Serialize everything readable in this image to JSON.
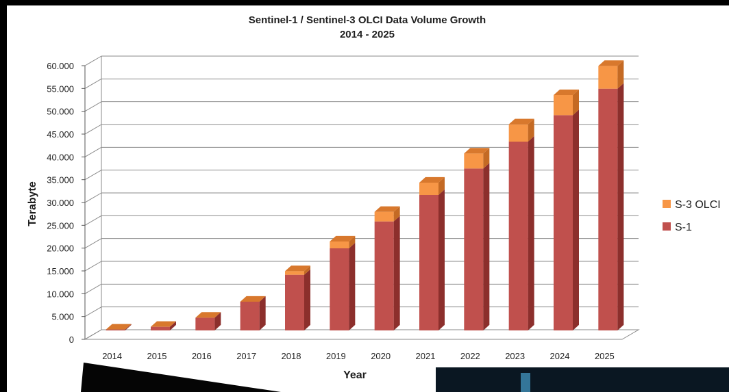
{
  "chart_data": {
    "type": "bar",
    "stacked": true,
    "title": "Sentinel-1 / Sentinel-3 OLCI Data Volume Growth",
    "subtitle": "2014 - 2025",
    "xlabel": "Year",
    "ylabel": "Terabyte",
    "categories": [
      "2014",
      "2015",
      "2016",
      "2017",
      "2018",
      "2019",
      "2020",
      "2021",
      "2022",
      "2023",
      "2024",
      "2025"
    ],
    "ylim": [
      0,
      60000
    ],
    "y_ticks": [
      "0",
      "5.000",
      "10.000",
      "15.000",
      "20.000",
      "25.000",
      "30.000",
      "35.000",
      "40.000",
      "45.000",
      "50.000",
      "55.000",
      "60.000"
    ],
    "y_tick_values": [
      0,
      5000,
      10000,
      15000,
      20000,
      25000,
      30000,
      35000,
      40000,
      45000,
      50000,
      55000,
      60000
    ],
    "grid": true,
    "legend_position": "right",
    "series": [
      {
        "name": "S-1",
        "color": "#c0504d",
        "values": [
          200,
          800,
          2800,
          6300,
          12200,
          18000,
          23900,
          29700,
          35500,
          41400,
          47200,
          53000
        ]
      },
      {
        "name": "S-3 OLCI",
        "color": "#f79646",
        "values": [
          0,
          0,
          0,
          0,
          800,
          1500,
          2100,
          2700,
          3300,
          3800,
          4400,
          5000
        ]
      }
    ]
  },
  "colors": {
    "s1_front": "#c0504d",
    "s1_side": "#8c2f2c",
    "s1_top": "#a63c39",
    "olci_front": "#f79646",
    "olci_side": "#c46a24",
    "olci_top": "#d8782d",
    "grid": "#8a8a8a"
  }
}
